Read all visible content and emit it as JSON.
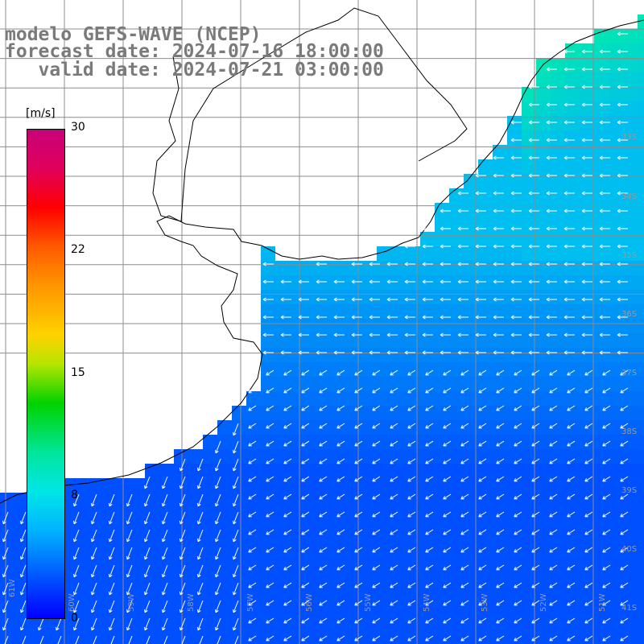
{
  "title": {
    "line1": "modelo GEFS-WAVE (NCEP)",
    "line2": "forecast date: 2024-07-16 18:00:00",
    "line3": "   valid date: 2024-07-21 03:00:00"
  },
  "colorbar": {
    "unit": "[m/s]",
    "ticks": [
      "30",
      "22",
      "15",
      "8",
      "0"
    ],
    "colors": [
      "#c8007a",
      "#ff0000",
      "#ffd200",
      "#00d200",
      "#00e6e6",
      "#0064ff",
      "#0000ff"
    ]
  },
  "lat_labels": [
    "33S",
    "34S",
    "35S",
    "36S",
    "37S",
    "38S",
    "39S",
    "40S",
    "41S"
  ],
  "lon_labels": [
    "61W",
    "60W",
    "59W",
    "58W",
    "57W",
    "56W",
    "55W",
    "54W",
    "53W",
    "52W",
    "51W"
  ],
  "map_style": {
    "land": "#ffffff",
    "grid": "#8c8c8c",
    "coast": "#000000",
    "arrows": "#ffffff",
    "ocean_south": "#0050ff",
    "ocean_river": "#00bef0",
    "ocean_northeast": "#00e6b4"
  }
}
